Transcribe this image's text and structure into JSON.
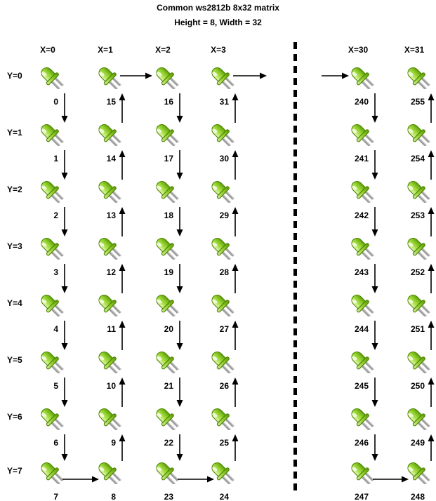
{
  "title": {
    "line1": "Common ws2812b 8x32 matrix",
    "line2": "Height = 8, Width = 32"
  },
  "row_labels": [
    "Y=0",
    "Y=1",
    "Y=2",
    "Y=3",
    "Y=4",
    "Y=5",
    "Y=6",
    "Y=7"
  ],
  "columns": [
    {
      "header": "X=0",
      "direction": "down",
      "values": [
        "0",
        "1",
        "2",
        "3",
        "4",
        "5",
        "6",
        "7"
      ]
    },
    {
      "header": "X=1",
      "direction": "up",
      "values": [
        "15",
        "14",
        "13",
        "12",
        "11",
        "10",
        "9",
        "8"
      ]
    },
    {
      "header": "X=2",
      "direction": "down",
      "values": [
        "16",
        "17",
        "18",
        "19",
        "20",
        "21",
        "22",
        "23"
      ]
    },
    {
      "header": "X=3",
      "direction": "up",
      "values": [
        "31",
        "30",
        "29",
        "28",
        "27",
        "26",
        "25",
        "24"
      ]
    },
    {
      "header": "X=30",
      "direction": "down",
      "values": [
        "240",
        "241",
        "242",
        "243",
        "244",
        "245",
        "246",
        "247"
      ]
    },
    {
      "header": "X=31",
      "direction": "up",
      "values": [
        "255",
        "254",
        "253",
        "252",
        "251",
        "250",
        "249",
        "248"
      ]
    }
  ],
  "connections": [
    {
      "row": "Y=0",
      "from": "X=1",
      "to": "X=2"
    },
    {
      "row": "Y=0",
      "from": "X=3",
      "to": "separator"
    },
    {
      "row": "Y=0",
      "from": "separator",
      "to": "X=30"
    },
    {
      "row": "Y=7",
      "from": "X=0",
      "to": "X=1"
    },
    {
      "row": "Y=7",
      "from": "X=2",
      "to": "X=3"
    },
    {
      "row": "Y=7",
      "from": "X=30",
      "to": "X=31"
    }
  ],
  "separator": {
    "type": "vertical-dashed-line",
    "meaning": "columns X=4 through X=29 omitted"
  },
  "icons": {
    "led": "led-icon"
  },
  "colors": {
    "background": "#ffffff",
    "text": "#000000",
    "arrow": "#000000",
    "led_body": "#90cf2b",
    "led_body_light": "#eaf7c3",
    "led_body_dark": "#61a00d",
    "led_outline": "#4c8500",
    "led_highlight": "#f2fbda",
    "led_leg": "#9d9d9d"
  }
}
